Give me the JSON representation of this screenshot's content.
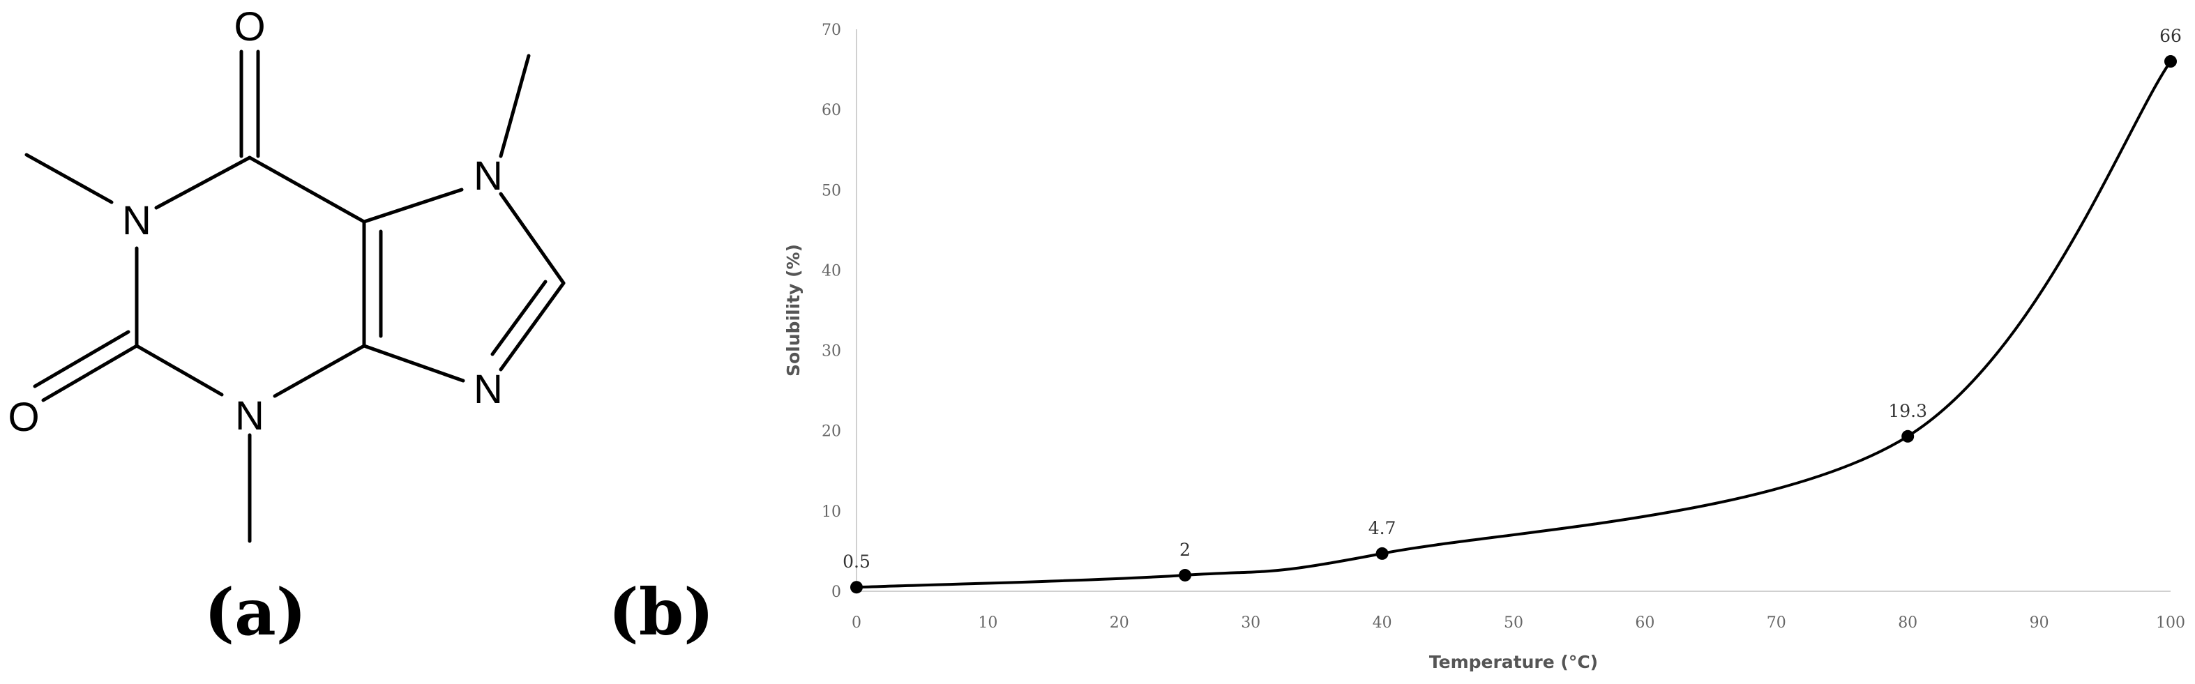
{
  "molecule": {
    "atoms": {
      "n1": "N",
      "n3": "N",
      "n7": "N",
      "n9": "N",
      "o_top": "O",
      "o_left": "O"
    }
  },
  "panels": {
    "a": "(a)",
    "b": "(b)"
  },
  "chart_data": {
    "type": "line",
    "title": "",
    "xlabel": "Temperature (°C)",
    "ylabel": "Solubility (%)",
    "xlim": [
      0,
      100
    ],
    "ylim": [
      0,
      70
    ],
    "x_ticks": [
      0,
      10,
      20,
      30,
      40,
      50,
      60,
      70,
      80,
      90,
      100
    ],
    "y_ticks": [
      0,
      10,
      20,
      30,
      40,
      50,
      60,
      70
    ],
    "grid": false,
    "smooth": true,
    "x": [
      0,
      25,
      40,
      80,
      100
    ],
    "y": [
      0.5,
      2,
      4.7,
      19.3,
      66
    ],
    "data_labels": [
      "0.5",
      "2",
      "4.7",
      "19.3",
      "66"
    ],
    "line_color": "#000000",
    "marker_color": "#000000"
  }
}
